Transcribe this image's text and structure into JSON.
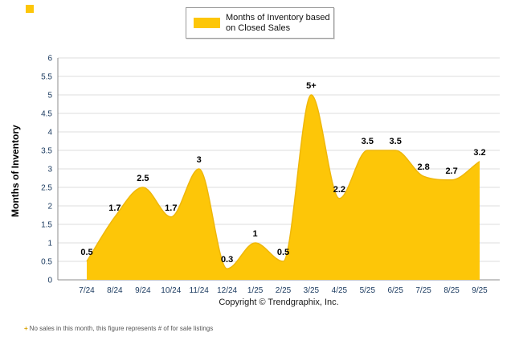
{
  "legend": {
    "line1": "Months of Inventory based",
    "line2": "on Closed Sales"
  },
  "footer": {
    "copyright": "Copyright © Trendgraphix, Inc.",
    "note_marker": "+",
    "note_text": "No sales in this month, this figure represents # of for sale listings"
  },
  "chart_data": {
    "type": "area",
    "title": "Months of Inventory based on Closed Sales",
    "xlabel": "",
    "ylabel": "Months of Inventory",
    "categories": [
      "7/24",
      "8/24",
      "9/24",
      "10/24",
      "11/24",
      "12/24",
      "1/25",
      "2/25",
      "3/25",
      "4/25",
      "5/25",
      "6/25",
      "7/25",
      "8/25",
      "9/25"
    ],
    "values": [
      0.5,
      1.7,
      2.5,
      1.7,
      3,
      0.3,
      1,
      0.5,
      5,
      2.2,
      3.5,
      3.5,
      2.8,
      2.7,
      3.2
    ],
    "point_labels": [
      "0.5",
      "1.7",
      "2.5",
      "1.7",
      "3",
      "0.3",
      "1",
      "0.5",
      "5+",
      "2.2",
      "3.5",
      "3.5",
      "2.8",
      "2.7",
      "3.2"
    ],
    "ylim": [
      0,
      6
    ],
    "ytick_step": 0.5,
    "grid": true,
    "legend_position": "top",
    "colors": {
      "fill": "#FDC608",
      "stroke": "#EFB70A",
      "grid": "#dcdcdc",
      "axis": "#8c8c8c",
      "tick_text": "#17375d",
      "label_text": "#000000"
    }
  }
}
